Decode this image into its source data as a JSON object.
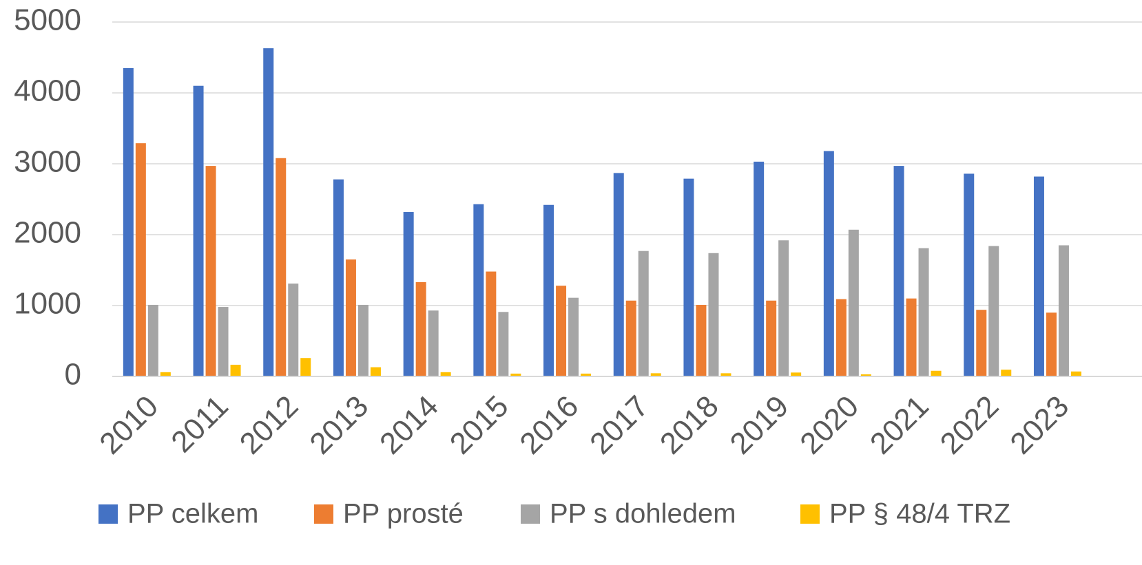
{
  "chart_data": {
    "type": "bar",
    "categories": [
      "2010",
      "2011",
      "2012",
      "2013",
      "2014",
      "2015",
      "2016",
      "2017",
      "2018",
      "2019",
      "2020",
      "2021",
      "2022",
      "2023"
    ],
    "series": [
      {
        "name": "PP celkem",
        "color": "#4472c4",
        "values": [
          4350,
          4100,
          4630,
          2780,
          2320,
          2430,
          2420,
          2870,
          2790,
          3030,
          3180,
          2970,
          2860,
          2820
        ]
      },
      {
        "name": "PP prosté",
        "color": "#ed7d31",
        "values": [
          3290,
          2970,
          3080,
          1650,
          1330,
          1480,
          1280,
          1070,
          1010,
          1070,
          1090,
          1100,
          940,
          900
        ]
      },
      {
        "name": "PP s dohledem",
        "color": "#a5a5a5",
        "values": [
          1010,
          980,
          1310,
          1010,
          930,
          910,
          1110,
          1770,
          1740,
          1920,
          2070,
          1810,
          1840,
          1850
        ]
      },
      {
        "name": "PP § 48/4 TRZ",
        "color": "#ffc000",
        "values": [
          60,
          165,
          260,
          130,
          60,
          40,
          40,
          45,
          45,
          55,
          30,
          80,
          95,
          70
        ]
      }
    ],
    "ylim": [
      0,
      5000
    ],
    "yticks": [
      0,
      1000,
      2000,
      3000,
      4000,
      5000
    ],
    "grid": true,
    "legend": "bottom"
  }
}
